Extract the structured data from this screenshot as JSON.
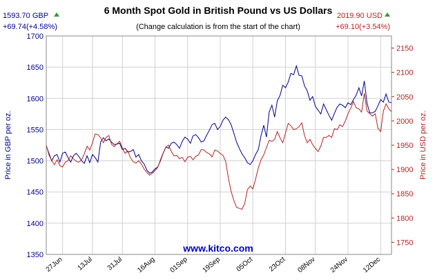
{
  "chart_data": {
    "type": "line",
    "title": "6 Month Spot Gold in British Pound vs US Dollars",
    "subtitle": "(Change calculation is from the start of the chart)",
    "watermark": "www.kitco.com",
    "left_readout": {
      "price": "1593.70 GBP",
      "change": "+69.74(+4.58%)"
    },
    "right_readout": {
      "price": "2019.90 USD",
      "change": "+69.10(+3.54%)"
    },
    "ylabel_left": "Price in GBP per oz.",
    "ylabel_right": "Price in USD per oz.",
    "ylim_left": [
      1350,
      1700
    ],
    "ylim_right": [
      1725,
      2175
    ],
    "yticks_left": [
      1350,
      1400,
      1450,
      1500,
      1550,
      1600,
      1650,
      1700
    ],
    "yticks_right": [
      1750,
      1800,
      1850,
      1900,
      1950,
      2000,
      2050,
      2100,
      2150
    ],
    "x_range": [
      0,
      127
    ],
    "x_ticks": [
      {
        "label": "27Jun",
        "x": 6
      },
      {
        "label": "13Jul",
        "x": 17
      },
      {
        "label": "31Jul",
        "x": 28
      },
      {
        "label": "16Aug",
        "x": 40
      },
      {
        "label": "01Sep",
        "x": 52
      },
      {
        "label": "19Sep",
        "x": 64
      },
      {
        "label": "05Oct",
        "x": 76
      },
      {
        "label": "23Oct",
        "x": 88
      },
      {
        "label": "08Nov",
        "x": 99
      },
      {
        "label": "24Nov",
        "x": 111
      },
      {
        "label": "12Dec",
        "x": 123
      }
    ],
    "grid": true,
    "colors": {
      "gbp": "#00008B",
      "usd": "#B22222",
      "up_arrow": "#2E9E2E",
      "watermark": "#0000CC"
    },
    "series": [
      {
        "axis": "left",
        "x": [
          0,
          1,
          2,
          3,
          4,
          5,
          6,
          7,
          8,
          9,
          10,
          11,
          12,
          13,
          14,
          15,
          16,
          17,
          18,
          19,
          20,
          21,
          22,
          23,
          24,
          25,
          26,
          27,
          28,
          29,
          30,
          31,
          32,
          33,
          34,
          35,
          36,
          37,
          38,
          39,
          40,
          41,
          42,
          43,
          44,
          45,
          46,
          47,
          48,
          49,
          50,
          51,
          52,
          53,
          54,
          55,
          56,
          57,
          58,
          59,
          60,
          61,
          62,
          63,
          64,
          65,
          66,
          67,
          68,
          69,
          70,
          71,
          72,
          73,
          74,
          75,
          76,
          77,
          78,
          79,
          80,
          81,
          82,
          83,
          84,
          85,
          86,
          87,
          88,
          89,
          90,
          91,
          92,
          93,
          94,
          95,
          96,
          97,
          98,
          99,
          100,
          101,
          102,
          103,
          104,
          105,
          106,
          107,
          108,
          109,
          110,
          111,
          112,
          113,
          114,
          115,
          116,
          117,
          118,
          119,
          120,
          121,
          122,
          123,
          124,
          125,
          126,
          127
        ],
        "values": [
          1524,
          1512,
          1500,
          1508,
          1510,
          1498,
          1512,
          1514,
          1505,
          1498,
          1508,
          1512,
          1507,
          1500,
          1496,
          1508,
          1497,
          1510,
          1505,
          1498,
          1530,
          1537,
          1532,
          1535,
          1530,
          1526,
          1527,
          1528,
          1518,
          1520,
          1514,
          1515,
          1518,
          1506,
          1510,
          1500,
          1495,
          1485,
          1480,
          1482,
          1487,
          1490,
          1500,
          1512,
          1522,
          1520,
          1528,
          1530,
          1526,
          1520,
          1531,
          1538,
          1535,
          1528,
          1540,
          1542,
          1537,
          1530,
          1532,
          1541,
          1549,
          1558,
          1560,
          1550,
          1555,
          1565,
          1570,
          1566,
          1558,
          1544,
          1530,
          1520,
          1511,
          1505,
          1497,
          1494,
          1500,
          1510,
          1518,
          1540,
          1557,
          1538,
          1578,
          1589,
          1570,
          1596,
          1605,
          1621,
          1617,
          1626,
          1640,
          1638,
          1652,
          1637,
          1636,
          1620,
          1612,
          1597,
          1603,
          1587,
          1581,
          1575,
          1591,
          1582,
          1573,
          1565,
          1576,
          1586,
          1591,
          1589,
          1585,
          1593,
          1590,
          1598,
          1605,
          1617,
          1604,
          1628,
          1592,
          1577,
          1577,
          1579,
          1588,
          1598,
          1594,
          1607,
          1594,
          1593
        ]
      },
      {
        "axis": "right",
        "x": [
          0,
          1,
          2,
          3,
          4,
          5,
          6,
          7,
          8,
          9,
          10,
          11,
          12,
          13,
          14,
          15,
          16,
          17,
          18,
          19,
          20,
          21,
          22,
          23,
          24,
          25,
          26,
          27,
          28,
          29,
          30,
          31,
          32,
          33,
          34,
          35,
          36,
          37,
          38,
          39,
          40,
          41,
          42,
          43,
          44,
          45,
          46,
          47,
          48,
          49,
          50,
          51,
          52,
          53,
          54,
          55,
          56,
          57,
          58,
          59,
          60,
          61,
          62,
          63,
          64,
          65,
          66,
          67,
          68,
          69,
          70,
          71,
          72,
          73,
          74,
          75,
          76,
          77,
          78,
          79,
          80,
          81,
          82,
          83,
          84,
          85,
          86,
          87,
          88,
          89,
          90,
          91,
          92,
          93,
          94,
          95,
          96,
          97,
          98,
          99,
          100,
          101,
          102,
          103,
          104,
          105,
          106,
          107,
          108,
          109,
          110,
          111,
          112,
          113,
          114,
          115,
          116,
          117,
          118,
          119,
          120,
          121,
          122,
          123,
          124,
          125,
          126,
          127
        ],
        "values": [
          1951,
          1930,
          1918,
          1910,
          1920,
          1908,
          1905,
          1915,
          1918,
          1928,
          1922,
          1917,
          1915,
          1920,
          1932,
          1948,
          1940,
          1955,
          1973,
          1972,
          1965,
          1955,
          1966,
          1970,
          1952,
          1947,
          1953,
          1958,
          1944,
          1933,
          1938,
          1924,
          1916,
          1913,
          1918,
          1911,
          1901,
          1894,
          1888,
          1892,
          1898,
          1904,
          1920,
          1934,
          1946,
          1950,
          1937,
          1928,
          1929,
          1922,
          1925,
          1916,
          1925,
          1927,
          1920,
          1927,
          1930,
          1941,
          1940,
          1935,
          1932,
          1926,
          1940,
          1938,
          1933,
          1929,
          1917,
          1882,
          1855,
          1836,
          1822,
          1820,
          1818,
          1830,
          1858,
          1866,
          1860,
          1880,
          1903,
          1920,
          1930,
          1945,
          1960,
          1958,
          1962,
          1978,
          1965,
          1955,
          1975,
          1995,
          1990,
          1982,
          1984,
          1988,
          1996,
          1970,
          1955,
          1962,
          1951,
          1943,
          1937,
          1948,
          1966,
          1966,
          1970,
          1966,
          1984,
          1982,
          1992,
          1988,
          2000,
          2015,
          2026,
          2040,
          2027,
          2025,
          2018,
          2057,
          2020,
          2015,
          2010,
          2015,
          1985,
          1978,
          2020,
          2035,
          2025,
          2019
        ]
      }
    ]
  }
}
